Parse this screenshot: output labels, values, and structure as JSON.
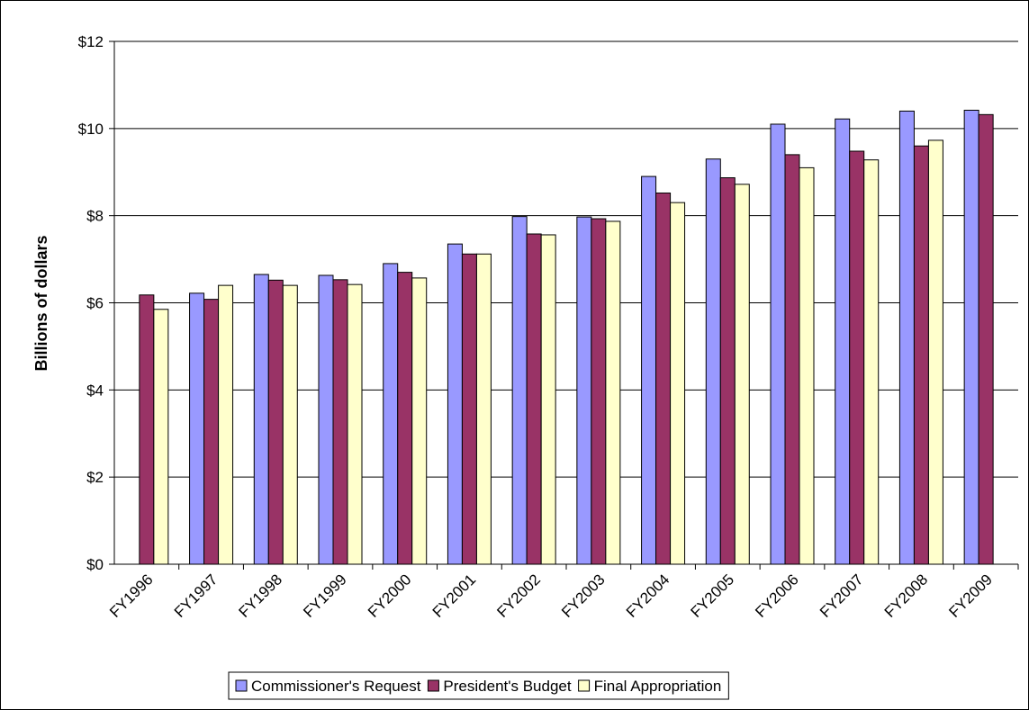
{
  "chart_data": {
    "type": "bar",
    "y_label": "Billions of dollars",
    "categories": [
      "FY1996",
      "FY1997",
      "FY1998",
      "FY1999",
      "FY2000",
      "FY2001",
      "FY2002",
      "FY2003",
      "FY2004",
      "FY2005",
      "FY2006",
      "FY2007",
      "FY2008",
      "FY2009"
    ],
    "series": [
      {
        "name": "Commissioner's Request",
        "color": "#9999ff",
        "values": [
          null,
          6.22,
          6.65,
          6.63,
          6.9,
          7.35,
          7.98,
          7.97,
          8.9,
          9.3,
          10.1,
          10.22,
          10.4,
          10.42
        ]
      },
      {
        "name": "President's Budget",
        "color": "#993366",
        "values": [
          6.18,
          6.08,
          6.52,
          6.53,
          6.7,
          7.12,
          7.58,
          7.93,
          8.52,
          8.87,
          9.4,
          9.48,
          9.6,
          10.32
        ]
      },
      {
        "name": "Final Appropriation",
        "color": "#ffffcc",
        "values": [
          5.85,
          6.4,
          6.4,
          6.42,
          6.57,
          7.12,
          7.56,
          7.87,
          8.3,
          8.72,
          9.1,
          9.28,
          9.73,
          null
        ]
      }
    ],
    "ylim": [
      0,
      12
    ],
    "yticks": [
      {
        "value": 0,
        "label": "$0"
      },
      {
        "value": 2,
        "label": "$2"
      },
      {
        "value": 4,
        "label": "$4"
      },
      {
        "value": 6,
        "label": "$6"
      },
      {
        "value": 8,
        "label": "$8"
      },
      {
        "value": 10,
        "label": "$10"
      },
      {
        "value": 12,
        "label": "$12"
      }
    ],
    "grid": true,
    "legend": "bottom"
  }
}
